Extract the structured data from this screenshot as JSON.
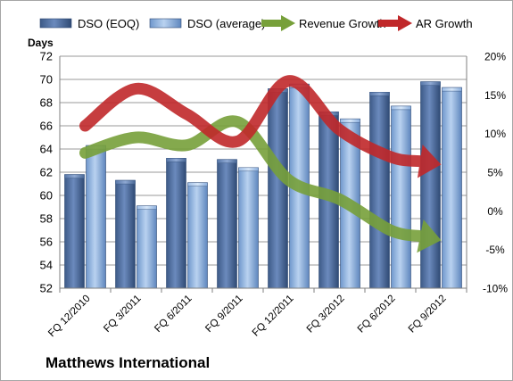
{
  "chart_data": {
    "type": "bar",
    "title": "",
    "company": "Matthews International",
    "y_left_label": "Days",
    "y_left_range": [
      52,
      72
    ],
    "y_left_ticks": [
      "52",
      "54",
      "56",
      "58",
      "60",
      "62",
      "64",
      "66",
      "68",
      "70",
      "72"
    ],
    "y_right_range": [
      -10,
      20
    ],
    "y_right_ticks": [
      "-10%",
      "-5%",
      "0%",
      "5%",
      "10%",
      "15%",
      "20%"
    ],
    "categories": [
      "FQ 12/2010",
      "FQ 3/2011",
      "FQ 6/2011",
      "FQ 9/2011",
      "FQ 12/2011",
      "FQ 3/2012",
      "FQ 6/2012",
      "FQ 9/2012"
    ],
    "series": [
      {
        "name": "DSO (EOQ)",
        "kind": "bar",
        "axis": "left",
        "color": "#4f6e9f",
        "values": [
          61.8,
          61.3,
          63.2,
          63.1,
          69.2,
          67.2,
          68.9,
          69.8
        ]
      },
      {
        "name": "DSO (average)",
        "kind": "bar",
        "axis": "left",
        "color": "#8eb4e3",
        "values": [
          64.3,
          59.1,
          61.1,
          62.4,
          69.6,
          66.6,
          67.7,
          69.3
        ]
      },
      {
        "name": "Revenue Growth",
        "kind": "line",
        "axis": "right",
        "color": "#77a03a",
        "values": [
          7.5,
          9.5,
          8.5,
          11.5,
          4.0,
          1.5,
          -2.5,
          -3.8
        ]
      },
      {
        "name": "AR Growth",
        "kind": "line",
        "axis": "right",
        "color": "#c0282a",
        "values": [
          11.0,
          15.8,
          12.5,
          9.0,
          16.8,
          10.5,
          7.0,
          6.0
        ]
      }
    ],
    "legend_position": "top",
    "gridlines": true
  }
}
